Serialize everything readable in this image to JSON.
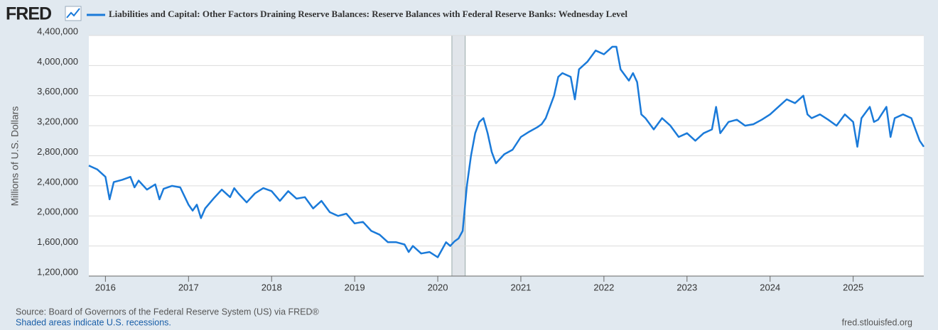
{
  "brand": "FRED",
  "chart_data": {
    "type": "line",
    "y_axis_label": "Millions of U.S. Dollars",
    "xlim": [
      2015.8,
      2025.85
    ],
    "xticks": [
      2016,
      2017,
      2018,
      2019,
      2020,
      2021,
      2022,
      2023,
      2024,
      2025
    ],
    "ylim": [
      1200000,
      4400000
    ],
    "yticks": [
      {
        "value": 1200000,
        "label": "1,200,000"
      },
      {
        "value": 1600000,
        "label": "1,600,000"
      },
      {
        "value": 2000000,
        "label": "2,000,000"
      },
      {
        "value": 2400000,
        "label": "2,400,000"
      },
      {
        "value": 2800000,
        "label": "2,800,000"
      },
      {
        "value": 3200000,
        "label": "3,200,000"
      },
      {
        "value": 3600000,
        "label": "3,600,000"
      },
      {
        "value": 4000000,
        "label": "4,000,000"
      },
      {
        "value": 4400000,
        "label": "4,400,000"
      }
    ],
    "grid": true,
    "recessions": [
      [
        2020.17,
        2020.33
      ]
    ],
    "x": [
      2015.8,
      2015.9,
      2016.0,
      2016.05,
      2016.1,
      2016.2,
      2016.3,
      2016.35,
      2016.4,
      2016.5,
      2016.6,
      2016.65,
      2016.7,
      2016.8,
      2016.9,
      2017.0,
      2017.05,
      2017.1,
      2017.15,
      2017.2,
      2017.3,
      2017.4,
      2017.5,
      2017.55,
      2017.6,
      2017.7,
      2017.8,
      2017.9,
      2018.0,
      2018.1,
      2018.2,
      2018.3,
      2018.4,
      2018.5,
      2018.6,
      2018.7,
      2018.8,
      2018.9,
      2019.0,
      2019.1,
      2019.2,
      2019.3,
      2019.4,
      2019.5,
      2019.6,
      2019.65,
      2019.7,
      2019.8,
      2019.9,
      2020.0,
      2020.05,
      2020.1,
      2020.15,
      2020.2,
      2020.25,
      2020.3,
      2020.35,
      2020.4,
      2020.45,
      2020.5,
      2020.55,
      2020.6,
      2020.65,
      2020.7,
      2020.8,
      2020.9,
      2021.0,
      2021.1,
      2021.2,
      2021.25,
      2021.3,
      2021.4,
      2021.45,
      2021.5,
      2021.6,
      2021.65,
      2021.7,
      2021.8,
      2021.9,
      2022.0,
      2022.1,
      2022.15,
      2022.2,
      2022.3,
      2022.35,
      2022.4,
      2022.45,
      2022.5,
      2022.6,
      2022.7,
      2022.8,
      2022.9,
      2023.0,
      2023.1,
      2023.2,
      2023.3,
      2023.35,
      2023.4,
      2023.5,
      2023.6,
      2023.7,
      2023.8,
      2023.9,
      2024.0,
      2024.1,
      2024.2,
      2024.3,
      2024.4,
      2024.45,
      2024.5,
      2024.6,
      2024.7,
      2024.8,
      2024.9,
      2025.0,
      2025.05,
      2025.1,
      2025.2,
      2025.25,
      2025.3,
      2025.4,
      2025.45,
      2025.5,
      2025.6,
      2025.7,
      2025.75,
      2025.8,
      2025.85
    ],
    "series": [
      {
        "name": "Liabilities and Capital: Other Factors Draining Reserve Balances: Reserve Balances with Federal Reserve Banks: Wednesday Level",
        "color": "#1a7ad9",
        "values": [
          2670000,
          2620000,
          2520000,
          2220000,
          2450000,
          2480000,
          2520000,
          2380000,
          2470000,
          2350000,
          2420000,
          2220000,
          2360000,
          2400000,
          2380000,
          2150000,
          2070000,
          2150000,
          1970000,
          2100000,
          2230000,
          2350000,
          2250000,
          2370000,
          2300000,
          2180000,
          2300000,
          2370000,
          2330000,
          2200000,
          2330000,
          2230000,
          2250000,
          2100000,
          2200000,
          2050000,
          2000000,
          2030000,
          1900000,
          1920000,
          1800000,
          1750000,
          1650000,
          1650000,
          1620000,
          1520000,
          1600000,
          1500000,
          1520000,
          1450000,
          1550000,
          1650000,
          1600000,
          1660000,
          1700000,
          1800000,
          2400000,
          2800000,
          3100000,
          3250000,
          3300000,
          3100000,
          2850000,
          2700000,
          2820000,
          2880000,
          3050000,
          3120000,
          3180000,
          3220000,
          3300000,
          3600000,
          3850000,
          3900000,
          3850000,
          3550000,
          3950000,
          4050000,
          4200000,
          4150000,
          4250000,
          4250000,
          3950000,
          3800000,
          3900000,
          3780000,
          3350000,
          3300000,
          3150000,
          3300000,
          3200000,
          3050000,
          3100000,
          3000000,
          3100000,
          3150000,
          3450000,
          3100000,
          3250000,
          3280000,
          3200000,
          3220000,
          3280000,
          3350000,
          3450000,
          3550000,
          3500000,
          3600000,
          3350000,
          3300000,
          3350000,
          3280000,
          3200000,
          3350000,
          3250000,
          2920000,
          3300000,
          3450000,
          3250000,
          3280000,
          3450000,
          3050000,
          3300000,
          3350000,
          3300000,
          3150000,
          3000000,
          2920000
        ]
      }
    ]
  },
  "footer": {
    "source": "Source: Board of Governors of the Federal Reserve System (US) via FRED®",
    "note": "Shaded areas indicate U.S. recessions.",
    "site": "fred.stlouisfed.org"
  }
}
